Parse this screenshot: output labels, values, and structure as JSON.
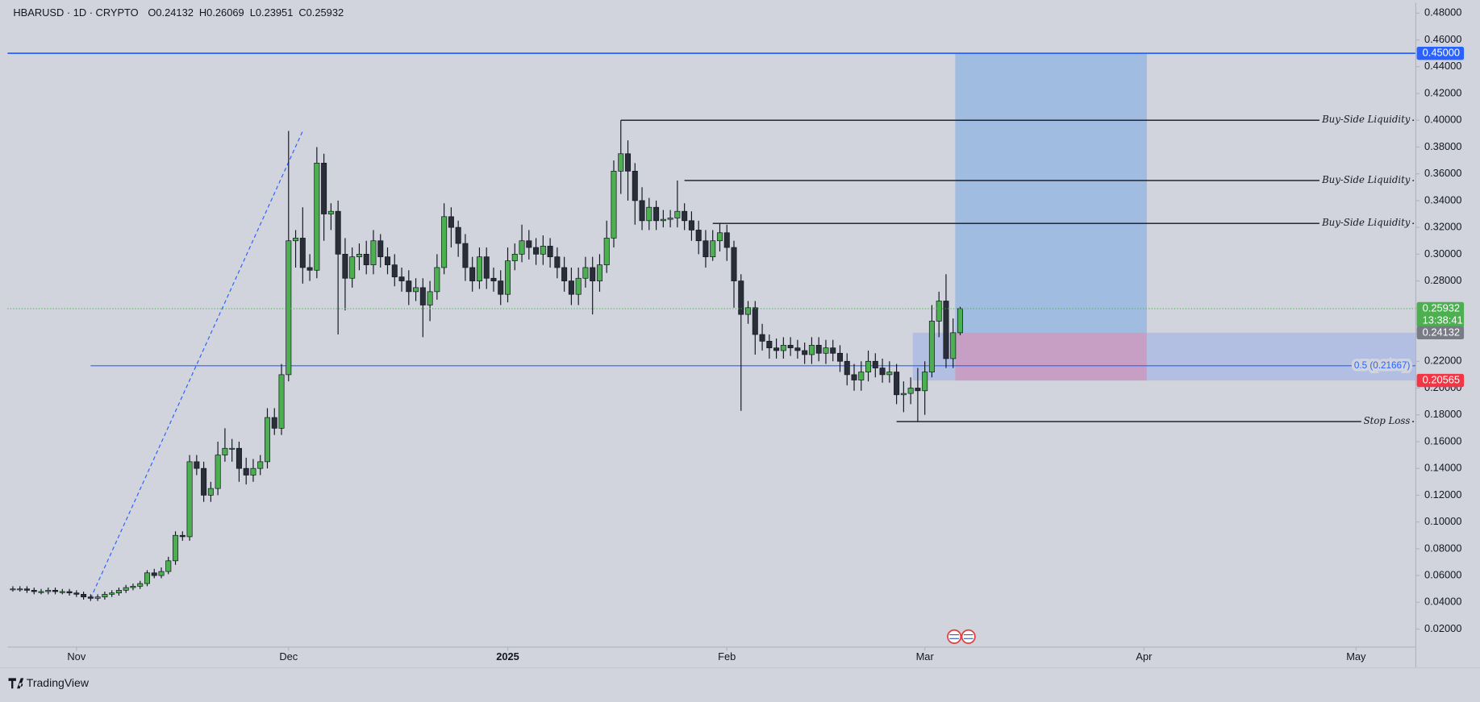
{
  "chart_data": {
    "type": "candlestick",
    "title": "HBARUSD · 1D · CRYPTO",
    "header_values": [
      "O0.24132",
      "H0.26069",
      "L0.23951",
      "C0.25932"
    ],
    "up_color": "#4caf50",
    "down_color": "#2a2e39",
    "open": [
      0.05,
      0.05,
      0.05,
      0.049,
      0.048,
      0.048,
      0.049,
      0.048,
      0.048,
      0.047,
      0.046,
      0.044,
      0.043,
      0.044,
      0.046,
      0.047,
      0.049,
      0.051,
      0.052,
      0.054,
      0.062,
      0.06,
      0.063,
      0.071,
      0.09,
      0.089,
      0.145,
      0.14,
      0.12,
      0.125,
      0.15,
      0.155,
      0.155,
      0.14,
      0.135,
      0.14,
      0.145,
      0.178,
      0.17,
      0.21,
      0.31,
      0.312,
      0.29,
      0.288,
      0.368,
      0.33,
      0.332,
      0.3,
      0.282,
      0.298,
      0.3,
      0.292,
      0.31,
      0.298,
      0.292,
      0.283,
      0.28,
      0.272,
      0.275,
      0.262,
      0.272,
      0.29,
      0.328,
      0.32,
      0.308,
      0.29,
      0.28,
      0.298,
      0.282,
      0.28,
      0.27,
      0.295,
      0.3,
      0.31,
      0.305,
      0.3,
      0.306,
      0.298,
      0.29,
      0.28,
      0.27,
      0.282,
      0.29,
      0.28,
      0.292,
      0.312,
      0.362,
      0.375,
      0.362,
      0.34,
      0.325,
      0.335,
      0.325,
      0.326,
      0.327,
      0.332,
      0.325,
      0.318,
      0.31,
      0.298,
      0.31,
      0.316,
      0.305,
      0.28,
      0.255,
      0.26,
      0.24,
      0.235,
      0.23,
      0.228,
      0.232,
      0.23,
      0.228,
      0.225,
      0.232,
      0.226,
      0.23,
      0.226,
      0.22,
      0.21,
      0.206,
      0.212,
      0.22,
      0.215,
      0.21,
      0.212,
      0.195,
      0.196,
      0.2,
      0.198,
      0.212,
      0.25,
      0.265,
      0.222,
      0.24132
    ],
    "high": [
      0.052,
      0.052,
      0.052,
      0.051,
      0.05,
      0.051,
      0.051,
      0.05,
      0.05,
      0.049,
      0.048,
      0.046,
      0.046,
      0.048,
      0.049,
      0.051,
      0.053,
      0.054,
      0.056,
      0.064,
      0.065,
      0.066,
      0.074,
      0.093,
      0.093,
      0.15,
      0.15,
      0.145,
      0.13,
      0.16,
      0.17,
      0.162,
      0.16,
      0.148,
      0.147,
      0.15,
      0.185,
      0.185,
      0.218,
      0.392,
      0.318,
      0.335,
      0.3,
      0.38,
      0.375,
      0.338,
      0.34,
      0.312,
      0.305,
      0.308,
      0.31,
      0.318,
      0.315,
      0.305,
      0.3,
      0.29,
      0.288,
      0.282,
      0.282,
      0.28,
      0.3,
      0.338,
      0.335,
      0.325,
      0.315,
      0.298,
      0.305,
      0.305,
      0.29,
      0.288,
      0.305,
      0.308,
      0.322,
      0.318,
      0.312,
      0.314,
      0.312,
      0.305,
      0.298,
      0.29,
      0.29,
      0.298,
      0.298,
      0.3,
      0.325,
      0.37,
      0.4,
      0.385,
      0.368,
      0.35,
      0.342,
      0.34,
      0.333,
      0.333,
      0.355,
      0.338,
      0.332,
      0.325,
      0.318,
      0.318,
      0.323,
      0.322,
      0.31,
      0.285,
      0.265,
      0.265,
      0.248,
      0.24,
      0.237,
      0.238,
      0.238,
      0.236,
      0.234,
      0.238,
      0.238,
      0.236,
      0.236,
      0.232,
      0.226,
      0.218,
      0.22,
      0.228,
      0.226,
      0.222,
      0.22,
      0.218,
      0.205,
      0.208,
      0.215,
      0.22,
      0.262,
      0.272,
      0.285,
      0.252,
      0.26069
    ],
    "low": [
      0.048,
      0.048,
      0.047,
      0.046,
      0.046,
      0.046,
      0.046,
      0.046,
      0.045,
      0.044,
      0.042,
      0.041,
      0.041,
      0.042,
      0.044,
      0.045,
      0.047,
      0.049,
      0.05,
      0.052,
      0.058,
      0.058,
      0.061,
      0.068,
      0.086,
      0.086,
      0.135,
      0.115,
      0.115,
      0.12,
      0.145,
      0.145,
      0.13,
      0.128,
      0.13,
      0.135,
      0.14,
      0.165,
      0.165,
      0.205,
      0.29,
      0.278,
      0.28,
      0.282,
      0.31,
      0.318,
      0.24,
      0.258,
      0.275,
      0.288,
      0.285,
      0.285,
      0.29,
      0.285,
      0.276,
      0.272,
      0.262,
      0.265,
      0.238,
      0.25,
      0.266,
      0.285,
      0.305,
      0.298,
      0.28,
      0.272,
      0.274,
      0.274,
      0.272,
      0.262,
      0.264,
      0.288,
      0.294,
      0.296,
      0.292,
      0.292,
      0.29,
      0.282,
      0.272,
      0.262,
      0.262,
      0.275,
      0.255,
      0.272,
      0.286,
      0.305,
      0.345,
      0.34,
      0.322,
      0.318,
      0.318,
      0.318,
      0.32,
      0.32,
      0.32,
      0.318,
      0.31,
      0.3,
      0.29,
      0.295,
      0.302,
      0.295,
      0.26,
      0.183,
      0.248,
      0.225,
      0.228,
      0.222,
      0.222,
      0.222,
      0.224,
      0.222,
      0.218,
      0.218,
      0.22,
      0.218,
      0.22,
      0.212,
      0.202,
      0.198,
      0.198,
      0.205,
      0.208,
      0.204,
      0.204,
      0.188,
      0.182,
      0.188,
      0.175,
      0.18,
      0.208,
      0.238,
      0.215,
      0.215,
      0.23951
    ],
    "close": [
      0.05,
      0.05,
      0.049,
      0.048,
      0.048,
      0.049,
      0.048,
      0.048,
      0.047,
      0.046,
      0.044,
      0.043,
      0.044,
      0.046,
      0.047,
      0.049,
      0.051,
      0.052,
      0.054,
      0.062,
      0.06,
      0.063,
      0.071,
      0.09,
      0.089,
      0.145,
      0.14,
      0.12,
      0.125,
      0.15,
      0.155,
      0.155,
      0.14,
      0.135,
      0.14,
      0.145,
      0.178,
      0.17,
      0.21,
      0.31,
      0.312,
      0.29,
      0.288,
      0.368,
      0.33,
      0.332,
      0.3,
      0.282,
      0.298,
      0.3,
      0.292,
      0.31,
      0.298,
      0.292,
      0.283,
      0.28,
      0.272,
      0.275,
      0.262,
      0.272,
      0.29,
      0.328,
      0.32,
      0.308,
      0.29,
      0.28,
      0.298,
      0.282,
      0.28,
      0.27,
      0.295,
      0.3,
      0.31,
      0.305,
      0.3,
      0.306,
      0.298,
      0.29,
      0.28,
      0.27,
      0.282,
      0.29,
      0.28,
      0.292,
      0.312,
      0.362,
      0.375,
      0.362,
      0.34,
      0.325,
      0.335,
      0.325,
      0.326,
      0.327,
      0.332,
      0.325,
      0.318,
      0.31,
      0.298,
      0.31,
      0.316,
      0.305,
      0.28,
      0.255,
      0.26,
      0.24,
      0.235,
      0.23,
      0.228,
      0.232,
      0.23,
      0.228,
      0.225,
      0.232,
      0.226,
      0.23,
      0.226,
      0.22,
      0.21,
      0.206,
      0.212,
      0.22,
      0.215,
      0.21,
      0.212,
      0.195,
      0.196,
      0.2,
      0.198,
      0.212,
      0.25,
      0.265,
      0.222,
      0.24132,
      0.25932
    ],
    "last_price_label": "0.25932",
    "countdown": "13:38:41",
    "xlim": [
      -0.75,
      198.45
    ],
    "xticks": [
      {
        "value": 9,
        "label": "Nov"
      },
      {
        "value": 39,
        "label": "Dec"
      },
      {
        "value": 70,
        "label": "2025"
      },
      {
        "value": 101,
        "label": "Feb"
      },
      {
        "value": 129,
        "label": "Mar"
      },
      {
        "value": 160,
        "label": "Apr"
      },
      {
        "value": 190,
        "label": "May"
      }
    ],
    "ylim": [
      0.0066,
      0.4877
    ],
    "yticks": [
      {
        "value": 0.48,
        "label": "0.48000"
      },
      {
        "value": 0.46,
        "label": "0.46000"
      },
      {
        "value": 0.44,
        "label": "0.44000"
      },
      {
        "value": 0.42,
        "label": "0.42000"
      },
      {
        "value": 0.4,
        "label": "0.40000"
      },
      {
        "value": 0.38,
        "label": "0.38000"
      },
      {
        "value": 0.36,
        "label": "0.36000"
      },
      {
        "value": 0.34,
        "label": "0.34000"
      },
      {
        "value": 0.32,
        "label": "0.32000"
      },
      {
        "value": 0.3,
        "label": "0.30000"
      },
      {
        "value": 0.28,
        "label": "0.28000"
      },
      {
        "value": 0.26,
        "label": "0.26000"
      },
      {
        "value": 0.24,
        "label": "0.24000"
      },
      {
        "value": 0.22,
        "label": "0.22000"
      },
      {
        "value": 0.2,
        "label": "0.20000"
      },
      {
        "value": 0.18,
        "label": "0.18000"
      },
      {
        "value": 0.16,
        "label": "0.16000"
      },
      {
        "value": 0.14,
        "label": "0.14000"
      },
      {
        "value": 0.12,
        "label": "0.12000"
      },
      {
        "value": 0.1,
        "label": "0.10000"
      },
      {
        "value": 0.08,
        "label": "0.08000"
      },
      {
        "value": 0.06,
        "label": "0.06000"
      },
      {
        "value": 0.04,
        "label": "0.04000"
      },
      {
        "value": 0.02,
        "label": "0.02000"
      }
    ],
    "levels": [
      {
        "value": 0.45,
        "label": "0.45000",
        "color": "#2962ff"
      }
    ],
    "annotations": [
      {
        "label": "Buy-Side Liquidity",
        "value": 0.4,
        "start": 86
      },
      {
        "label": "Buy-Side Liquidity",
        "value": 0.355,
        "start": 95
      },
      {
        "label": "Buy-Side Liquidity",
        "value": 0.323,
        "start": 99
      },
      {
        "label": "Stop Loss",
        "value": 0.175,
        "start": 125
      }
    ],
    "fib": {
      "label": "0.5 (0.21667)",
      "value": 0.21667,
      "start": 11,
      "color": "#2962ff"
    },
    "trendline": {
      "x": [
        11,
        41
      ],
      "y": [
        0.043,
        0.392
      ],
      "color": "#2962ff"
    },
    "position": {
      "entry": 0.24132,
      "entry_label": "0.24132",
      "target": 0.45,
      "stop": 0.20565,
      "stop_label": "0.20565",
      "start": 133.3,
      "end": 160.4,
      "zone_start": 127.3
    },
    "brand": "TradingView"
  }
}
